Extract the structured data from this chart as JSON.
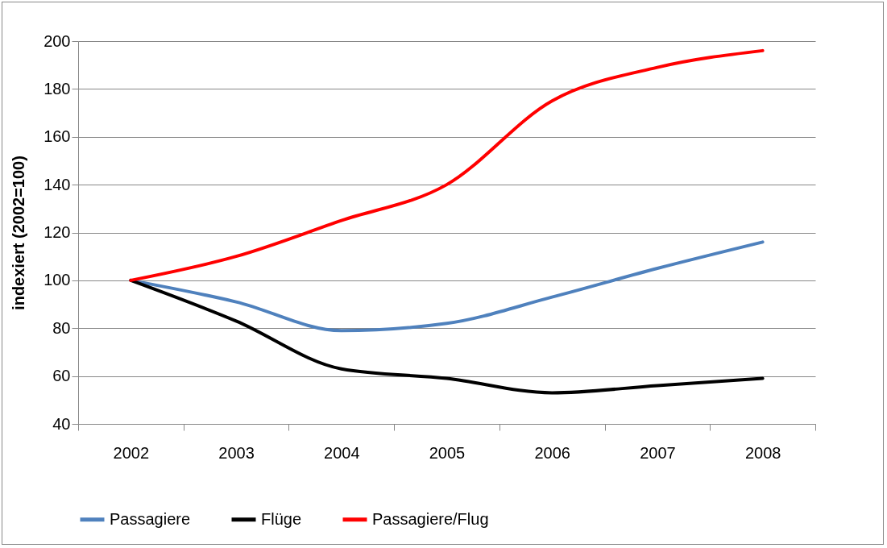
{
  "chart_data": {
    "type": "line",
    "ylabel": "indexiert (2002=100)",
    "categories": [
      "2002",
      "2003",
      "2004",
      "2005",
      "2006",
      "2007",
      "2008"
    ],
    "series": [
      {
        "name": "Passagiere",
        "color": "#4f81bd",
        "values": [
          100,
          91,
          79,
          82,
          93,
          105,
          116
        ]
      },
      {
        "name": "Flüge",
        "color": "#000000",
        "values": [
          100,
          83,
          63,
          59,
          53,
          56,
          59
        ]
      },
      {
        "name": "Passagiere/Flug",
        "color": "#ff0000",
        "values": [
          100,
          110,
          125,
          140,
          175,
          189,
          196
        ]
      }
    ],
    "ylim": [
      40,
      200
    ],
    "yticks": [
      40,
      60,
      80,
      100,
      120,
      140,
      160,
      180,
      200
    ],
    "grid": "y",
    "legend": "bottom",
    "marker": "none",
    "line_style": "solid"
  }
}
